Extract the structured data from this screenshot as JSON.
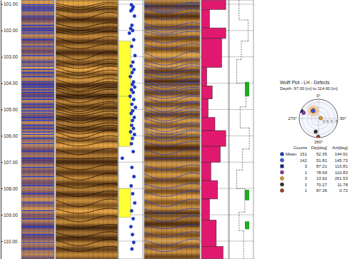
{
  "chart_data": {
    "type": "well_log",
    "ylim": [
      100.84,
      110.68
    ],
    "yticks": [
      {
        "value": 101,
        "label": "101.00"
      },
      {
        "value": 102,
        "label": "102.00"
      },
      {
        "value": 103,
        "label": "103.00"
      },
      {
        "value": 104,
        "label": "104.00"
      },
      {
        "value": 105,
        "label": "105.00"
      },
      {
        "value": 106,
        "label": "106.00"
      },
      {
        "value": 107,
        "label": "107.00"
      },
      {
        "value": 108,
        "label": "108.00"
      },
      {
        "value": 109,
        "label": "109.00"
      },
      {
        "value": 110,
        "label": "110.00"
      }
    ],
    "tick_labels": "y",
    "grid": true,
    "defects": {
      "color": "#1a3ad8",
      "marker": "circle",
      "xlim": [
        0,
        90
      ],
      "depths": [
        101.02,
        101.1,
        101.18,
        101.25,
        101.45,
        101.8,
        101.92,
        102.0,
        102.1,
        102.35,
        102.6,
        102.95,
        103.2,
        103.35,
        103.48,
        103.6,
        103.75,
        103.95,
        104.05,
        104.15,
        104.25,
        104.35,
        104.5,
        104.62,
        104.8,
        104.92,
        105.05,
        105.15,
        105.3,
        105.42,
        105.6,
        105.72,
        105.85,
        105.95,
        106.1,
        106.3,
        106.6,
        106.85,
        107.2,
        107.55,
        107.9,
        108.2,
        108.55,
        108.85,
        109.15,
        109.45,
        109.75,
        110.05,
        110.3
      ],
      "dips": [
        48,
        55,
        52,
        46,
        60,
        50,
        45,
        53,
        40,
        57,
        49,
        62,
        54,
        47,
        58,
        51,
        44,
        56,
        52,
        61,
        48,
        55,
        43,
        57,
        50,
        64,
        53,
        47,
        59,
        52,
        49,
        56,
        45,
        60,
        52,
        48,
        55,
        12,
        50,
        58,
        47,
        53,
        61,
        49,
        55,
        46,
        52,
        57,
        50
      ]
    },
    "zones": {
      "color": "#ffff33",
      "tops": [
        102.4,
        104.5,
        108.0
      ],
      "bottoms": [
        104.5,
        106.4,
        109.1
      ]
    },
    "intensity": {
      "color": "#e0196e",
      "xlim": [
        0,
        1
      ],
      "tops": [
        100.84,
        101.2,
        101.9,
        102.3,
        103.4,
        104.1,
        104.6,
        105.3,
        105.8,
        106.4,
        107.0,
        107.7,
        108.4,
        109.2,
        110.2
      ],
      "bottoms": [
        101.2,
        101.9,
        102.3,
        103.4,
        104.1,
        104.6,
        105.3,
        105.8,
        106.4,
        107.0,
        107.7,
        108.4,
        109.2,
        110.2,
        110.68
      ],
      "values": [
        0.9,
        0.3,
        0.9,
        0.75,
        0.2,
        0.4,
        0.25,
        0.5,
        0.9,
        0.7,
        0.35,
        0.6,
        0.3,
        0.55,
        0.8
      ]
    },
    "open_intensity": {
      "line_style": "dashed",
      "xlim": [
        0,
        1
      ],
      "tops": [
        100.84,
        101.6,
        102.4,
        103.1,
        104.0,
        104.9,
        105.7,
        106.5,
        107.3,
        108.0,
        108.9,
        109.6
      ],
      "bottoms": [
        101.6,
        102.4,
        103.1,
        104.0,
        104.9,
        105.7,
        106.5,
        107.3,
        108.0,
        108.9,
        109.6,
        110.68
      ],
      "values": [
        0.4,
        0.8,
        0.5,
        0.3,
        0.7,
        0.45,
        0.85,
        0.55,
        0.3,
        0.65,
        0.4,
        0.6
      ]
    },
    "flags": {
      "color": "#22aa22",
      "tops": [
        103.95,
        108.05,
        109.25
      ],
      "bottoms": [
        104.5,
        108.45,
        109.55
      ]
    },
    "stereonet": {
      "title": "Wulff Plot - LH - Defects",
      "subtitle": "Depth: 97.00 [m] to 114.60 [m]",
      "directions": [
        {
          "value": 0,
          "label": "0°"
        },
        {
          "value": 90,
          "label": "90°"
        },
        {
          "value": 180,
          "label": "180°"
        },
        {
          "value": 270,
          "label": "270°"
        }
      ],
      "dip_ticks": [
        20,
        40,
        60,
        80
      ],
      "columns": [
        "Counts",
        "Dip[deg]",
        "Azi[deg]"
      ],
      "sets": [
        {
          "label": "Mean",
          "count": 151,
          "dip": 52.35,
          "azi": 144.91,
          "color": "#1f3fd0",
          "marker": "circle"
        },
        {
          "count": 142,
          "dip": 51.81,
          "azi": 145.73,
          "color": "#3a5ae8",
          "marker": "circle"
        },
        {
          "count": 3,
          "dip": 87.21,
          "azi": 113.81,
          "color": "#202080",
          "marker": "square"
        },
        {
          "count": 1,
          "dip": 78.69,
          "azi": 110.83,
          "color": "#8a3aa8",
          "marker": "circle"
        },
        {
          "count": 3,
          "dip": 13.92,
          "azi": 261.53,
          "color": "#e8a020",
          "marker": "circle"
        },
        {
          "count": 1,
          "dip": 70.27,
          "azi": 11.78,
          "color": "#303030",
          "marker": "circle"
        },
        {
          "count": 1,
          "dip": 87.36,
          "azi": 0.72,
          "color": "#a04020",
          "marker": "circle"
        }
      ]
    }
  }
}
